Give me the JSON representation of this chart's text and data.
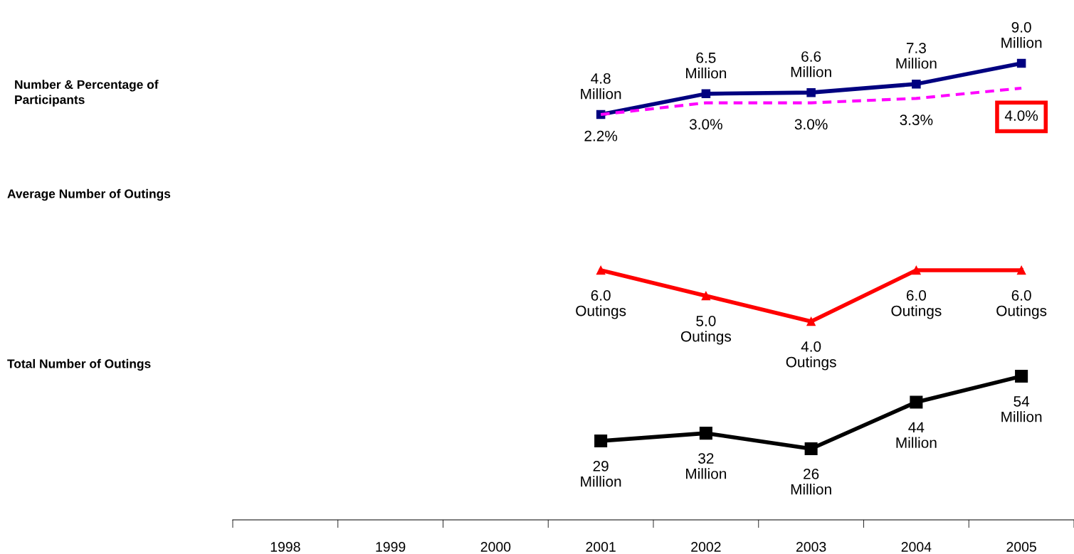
{
  "chart_data": [
    {
      "type": "line",
      "ylabel": "Number & Percentage of\nParticipants",
      "categories": [
        "1998",
        "1999",
        "2000",
        "2001",
        "2002",
        "2003",
        "2004",
        "2005"
      ],
      "tick_labels": false,
      "series": [
        {
          "color": "#000080",
          "marker": "square",
          "line_style": "solid",
          "values": [
            null,
            null,
            null,
            4.8,
            6.5,
            6.6,
            7.3,
            9.0
          ],
          "value_labels": [
            null,
            null,
            null,
            "4.8\nMillion",
            "6.5\nMillion",
            "6.6\nMillion",
            "7.3\nMillion",
            "9.0\nMillion"
          ]
        },
        {
          "color": "#ff00ff",
          "marker": "none",
          "line_style": "dashed",
          "axis": "y2",
          "values": [
            null,
            null,
            null,
            2.2,
            3.0,
            3.0,
            3.3,
            4.0
          ],
          "value_labels": [
            null,
            null,
            null,
            "2.2%",
            "3.0%",
            "3.0%",
            "3.3%",
            "4.0%"
          ]
        }
      ]
    },
    {
      "type": "line",
      "ylabel": "Average Number of Outings",
      "categories": [
        "1998",
        "1999",
        "2000",
        "2001",
        "2002",
        "2003",
        "2004",
        "2005"
      ],
      "tick_labels": false,
      "series": [
        {
          "color": "#ff0000",
          "marker": "triangle",
          "line_style": "solid",
          "values": [
            null,
            null,
            null,
            6.0,
            5.0,
            4.0,
            6.0,
            6.0
          ],
          "value_labels": [
            null,
            null,
            null,
            "6.0\nOutings",
            "5.0\nOutings",
            "4.0\nOutings",
            "6.0\nOutings",
            "6.0\nOutings"
          ]
        }
      ]
    },
    {
      "type": "line",
      "ylabel": "Total Number of Outings",
      "categories": [
        "1998",
        "1999",
        "2000",
        "2001",
        "2002",
        "2003",
        "2004",
        "2005"
      ],
      "tick_labels": "x",
      "series": [
        {
          "color": "#000000",
          "marker": "square",
          "line_style": "solid",
          "values": [
            null,
            null,
            null,
            29,
            32,
            26,
            44,
            54
          ],
          "value_labels": [
            null,
            null,
            null,
            "29\nMillion",
            "32\nMillion",
            "26\nMillion",
            "44\nMillion",
            "54\nMillion"
          ]
        }
      ]
    }
  ]
}
